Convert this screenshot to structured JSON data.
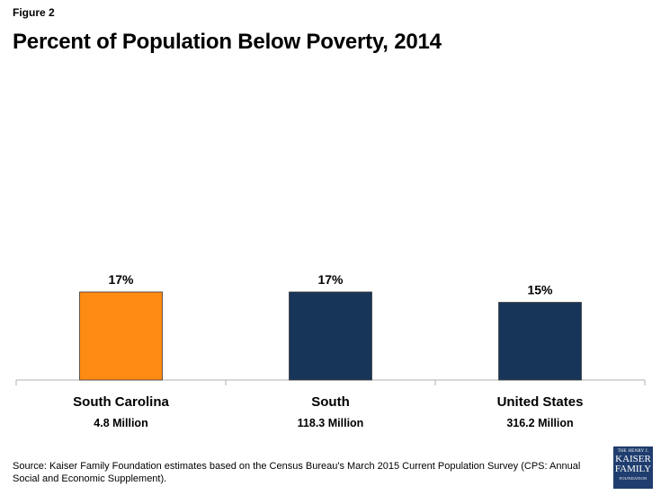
{
  "header": {
    "figure_label": "Figure 2",
    "title": "Percent of Population Below Poverty, 2014"
  },
  "chart_data": {
    "type": "bar",
    "title": "Percent of Population Below Poverty, 2014",
    "xlabel": "",
    "ylabel": "",
    "categories": [
      "South Carolina",
      "South",
      "United States"
    ],
    "sublabels": [
      "4.8 Million",
      "118.3 Million",
      "316.2 Million"
    ],
    "values": [
      17,
      17,
      15
    ],
    "data_labels": [
      "17%",
      "17%",
      "15%"
    ],
    "colors": [
      "#fd8a12",
      "#163559",
      "#163559"
    ],
    "ylim": [
      0,
      17
    ],
    "grid": false,
    "legend": "none"
  },
  "footer": {
    "source": "Source: Kaiser Family Foundation estimates based on the Census Bureau's March 2015 Current Population Survey (CPS: Annual Social and Economic Supplement).",
    "logo": {
      "line1": "THE HENRY J.",
      "line2": "KAISER",
      "line3": "FAMILY",
      "line4": "FOUNDATION",
      "color": "#1f3d6e"
    }
  }
}
